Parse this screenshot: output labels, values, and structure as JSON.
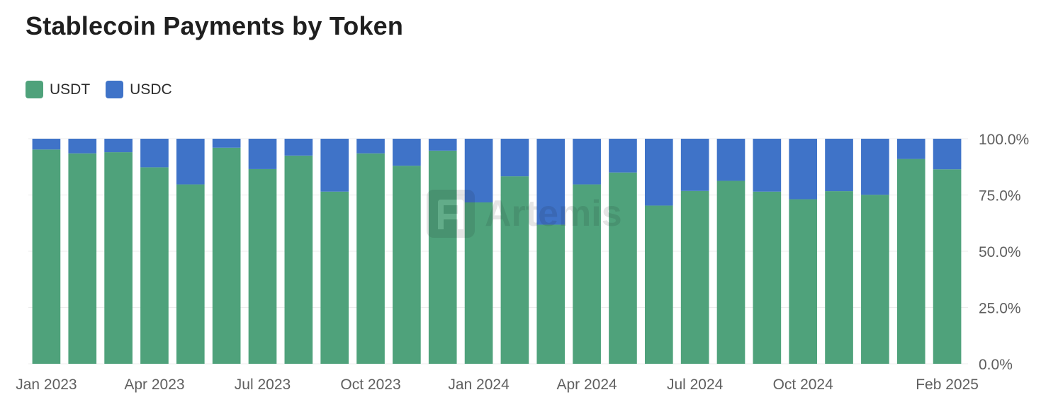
{
  "title": "Stablecoin Payments by Token",
  "colors": {
    "usdt": "#4fa27b",
    "usdc": "#3f73c8",
    "grid": "#ececec",
    "tick_text": "#5f5f5f"
  },
  "watermark": {
    "text": "Artemis"
  },
  "chart_data": {
    "type": "bar",
    "stacked": true,
    "title": "Stablecoin Payments by Token",
    "categories": [
      "2023-01",
      "2023-02",
      "2023-03",
      "2023-04",
      "2023-05",
      "2023-06",
      "2023-07",
      "2023-08",
      "2023-09",
      "2023-10",
      "2023-11",
      "2023-12",
      "2024-01",
      "2024-02",
      "2024-03",
      "2024-04",
      "2024-05",
      "2024-06",
      "2024-07",
      "2024-08",
      "2024-09",
      "2024-10",
      "2024-11",
      "2024-12",
      "2025-01",
      "2025-02"
    ],
    "series": [
      {
        "name": "USDT",
        "color": "#4fa27b",
        "values": [
          95.2,
          93.5,
          94.0,
          87.3,
          79.7,
          96.0,
          86.5,
          92.5,
          76.5,
          93.5,
          88.0,
          94.7,
          71.7,
          83.3,
          61.8,
          79.7,
          85.0,
          70.3,
          76.8,
          81.3,
          76.5,
          73.1,
          76.7,
          75.1,
          91.0,
          86.4
        ]
      },
      {
        "name": "USDC",
        "color": "#3f73c8",
        "values": [
          4.8,
          6.5,
          6.0,
          12.7,
          20.3,
          4.0,
          13.5,
          7.5,
          23.5,
          6.5,
          12.0,
          5.3,
          28.3,
          16.7,
          38.2,
          20.3,
          15.0,
          29.7,
          23.2,
          18.7,
          23.5,
          26.9,
          23.3,
          24.9,
          9.0,
          13.6
        ]
      }
    ],
    "x_tick_labels": [
      {
        "index": 0,
        "label": "Jan 2023"
      },
      {
        "index": 3,
        "label": "Apr 2023"
      },
      {
        "index": 6,
        "label": "Jul 2023"
      },
      {
        "index": 9,
        "label": "Oct 2023"
      },
      {
        "index": 12,
        "label": "Jan 2024"
      },
      {
        "index": 15,
        "label": "Apr 2024"
      },
      {
        "index": 18,
        "label": "Jul 2024"
      },
      {
        "index": 21,
        "label": "Oct 2024"
      },
      {
        "index": 25,
        "label": "Feb 2025"
      }
    ],
    "y_ticks": [
      {
        "value": 100,
        "label": "100.0%"
      },
      {
        "value": 75,
        "label": "75.0%"
      },
      {
        "value": 50,
        "label": "50.0%"
      },
      {
        "value": 25,
        "label": "25.0%"
      },
      {
        "value": 0,
        "label": "0.0%"
      }
    ],
    "ylim": [
      0,
      100
    ],
    "y_axis_position": "right",
    "grid": true,
    "legend_position": "top-left"
  }
}
